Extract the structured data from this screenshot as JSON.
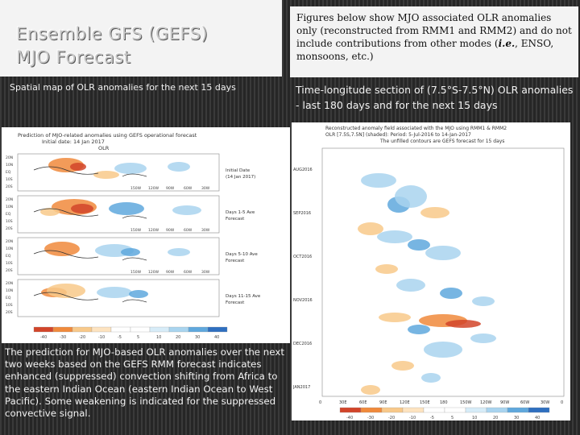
{
  "slide": {
    "title_line1": "Ensemble GFS (GEFS)",
    "title_line2": "MJO Forecast",
    "description_part1": "Figures below show MJO associated OLR anomalies only (reconstructed from RMM1 and RMM2) and do not include contributions from other modes (",
    "description_ie": "i.e.",
    "description_part2": ", ENSO, monsoons, etc.)",
    "left_heading": "Spatial map of OLR anomalies for the next 15 days",
    "right_heading": "Time-longitude section of (7.5°S-7.5°N) OLR anomalies - last 180 days and for the next 15 days",
    "caption": "The prediction for MJO-based OLR anomalies over the next two weeks based on the GEFS RMM forecast indicates enhanced (suppressed) convection shifting from Africa to the eastern Indian Ocean (eastern Indian Ocean to West Pacific).  Some weakening is indicated for the suppressed convective signal."
  },
  "map_figure": {
    "title_line1": "Prediction of MJO-related anomalies using GEFS operational forecast",
    "title_line2": "Initial date: 14 Jan 2017",
    "title_line3": "OLR",
    "panel_labels": [
      [
        "Initial Date",
        "(14 Jan 2017)"
      ],
      [
        "Days 1-5 Ave",
        "Forecast"
      ],
      [
        "Days 5-10 Ave",
        "Forecast"
      ],
      [
        "Days 11-15 Ave",
        "Forecast"
      ]
    ],
    "lon_labels": [
      "150W",
      "120W",
      "90W",
      "60W",
      "30W"
    ],
    "lat_labels": [
      "20N",
      "10N",
      "EQ",
      "10S",
      "20S"
    ],
    "colorbar_labels": [
      "-40",
      "-30",
      "-20",
      "-10",
      "-5",
      "5",
      "10",
      "20",
      "30",
      "40"
    ]
  },
  "hov_figure": {
    "title_line1": "Reconstructed anomaly field associated with the MJO using RMM1 & RMM2",
    "title_line2": "OLR [7.5S,7.5N] (shaded): Period: 5-Jul-2016 to 14-Jan-2017",
    "title_line3": "The unfilled contours are GEFS forecast for 15 days",
    "time_labels": [
      "AUG2016",
      "SEP2016",
      "OCT2016",
      "NOV2016",
      "DEC2016",
      "JAN2017"
    ],
    "lon_labels": [
      "0",
      "30E",
      "60E",
      "90E",
      "120E",
      "150E",
      "180",
      "150W",
      "120W",
      "90W",
      "60W",
      "30W",
      "0"
    ],
    "colorbar_labels": [
      "-40",
      "-30",
      "-20",
      "-10",
      "-5",
      "5",
      "10",
      "20",
      "30",
      "40"
    ]
  },
  "colors": {
    "neg_dark": "#d2452a",
    "neg_mid": "#f08a3c",
    "neg_light": "#f8c98a",
    "pos_light": "#a9d4ef",
    "pos_mid": "#5fa8dd",
    "pos_dark": "#2f6fc0"
  }
}
